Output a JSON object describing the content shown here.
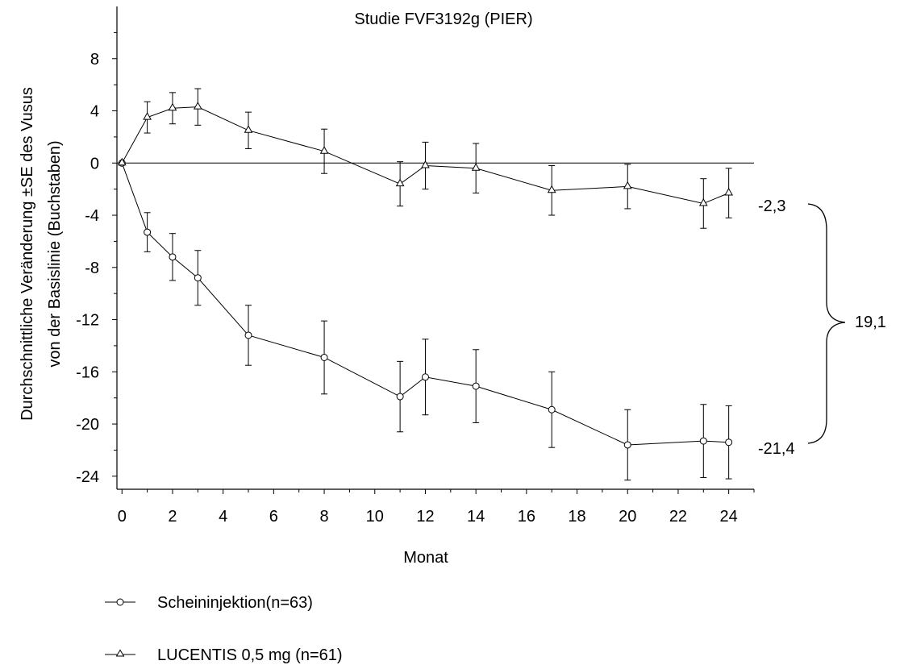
{
  "chart_data": {
    "type": "line",
    "title": "Studie FVF3192g (PIER)",
    "xlabel": "Monat",
    "ylabel_line1": "Durchschnittliche Veränderung ±SE des Vusus",
    "ylabel_line2": "von der Basislinie (Buchstaben)",
    "xlim": [
      -0.2,
      25
    ],
    "ylim": [
      -25,
      12
    ],
    "x_ticks": [
      0,
      2,
      4,
      6,
      8,
      10,
      12,
      14,
      16,
      18,
      20,
      22,
      24
    ],
    "x_tick_labels": [
      "0",
      "2",
      "4",
      "6",
      "8",
      "10",
      "12",
      "14",
      "16",
      "18",
      "20",
      "22",
      "24"
    ],
    "y_ticks": [
      8,
      4,
      0,
      -4,
      -8,
      -12,
      -16,
      -20,
      -24
    ],
    "y_tick_labels": [
      "8",
      "4",
      "0",
      "-4",
      "-8",
      "-12",
      "-16",
      "-20",
      "-24"
    ],
    "series": [
      {
        "name": "Scheininjektion(n=63)",
        "marker": "circle",
        "x": [
          0,
          1,
          2,
          3,
          5,
          8,
          11,
          12,
          14,
          17,
          20,
          23,
          24
        ],
        "y": [
          0,
          -5.3,
          -7.2,
          -8.8,
          -13.2,
          -14.9,
          -17.9,
          -16.4,
          -17.1,
          -18.9,
          -21.6,
          -21.3,
          -21.4
        ],
        "err": [
          0,
          1.5,
          1.8,
          2.1,
          2.3,
          2.8,
          2.7,
          2.9,
          2.8,
          2.9,
          2.7,
          2.8,
          2.8
        ]
      },
      {
        "name": "LUCENTIS 0,5 mg (n=61)",
        "marker": "triangle",
        "x": [
          0,
          1,
          2,
          3,
          5,
          8,
          11,
          12,
          14,
          17,
          20,
          23,
          24
        ],
        "y": [
          0,
          3.5,
          4.2,
          4.3,
          2.5,
          0.9,
          -1.6,
          -0.2,
          -0.4,
          -2.1,
          -1.8,
          -3.1,
          -2.3
        ],
        "err": [
          0,
          1.2,
          1.2,
          1.4,
          1.4,
          1.7,
          1.7,
          1.8,
          1.9,
          1.9,
          1.7,
          1.9,
          1.9
        ]
      }
    ],
    "annotations": {
      "end_top": "-2,3",
      "end_bottom": "-21,4",
      "difference": "19,1"
    },
    "legend_position": "bottom-left",
    "grid": false
  }
}
